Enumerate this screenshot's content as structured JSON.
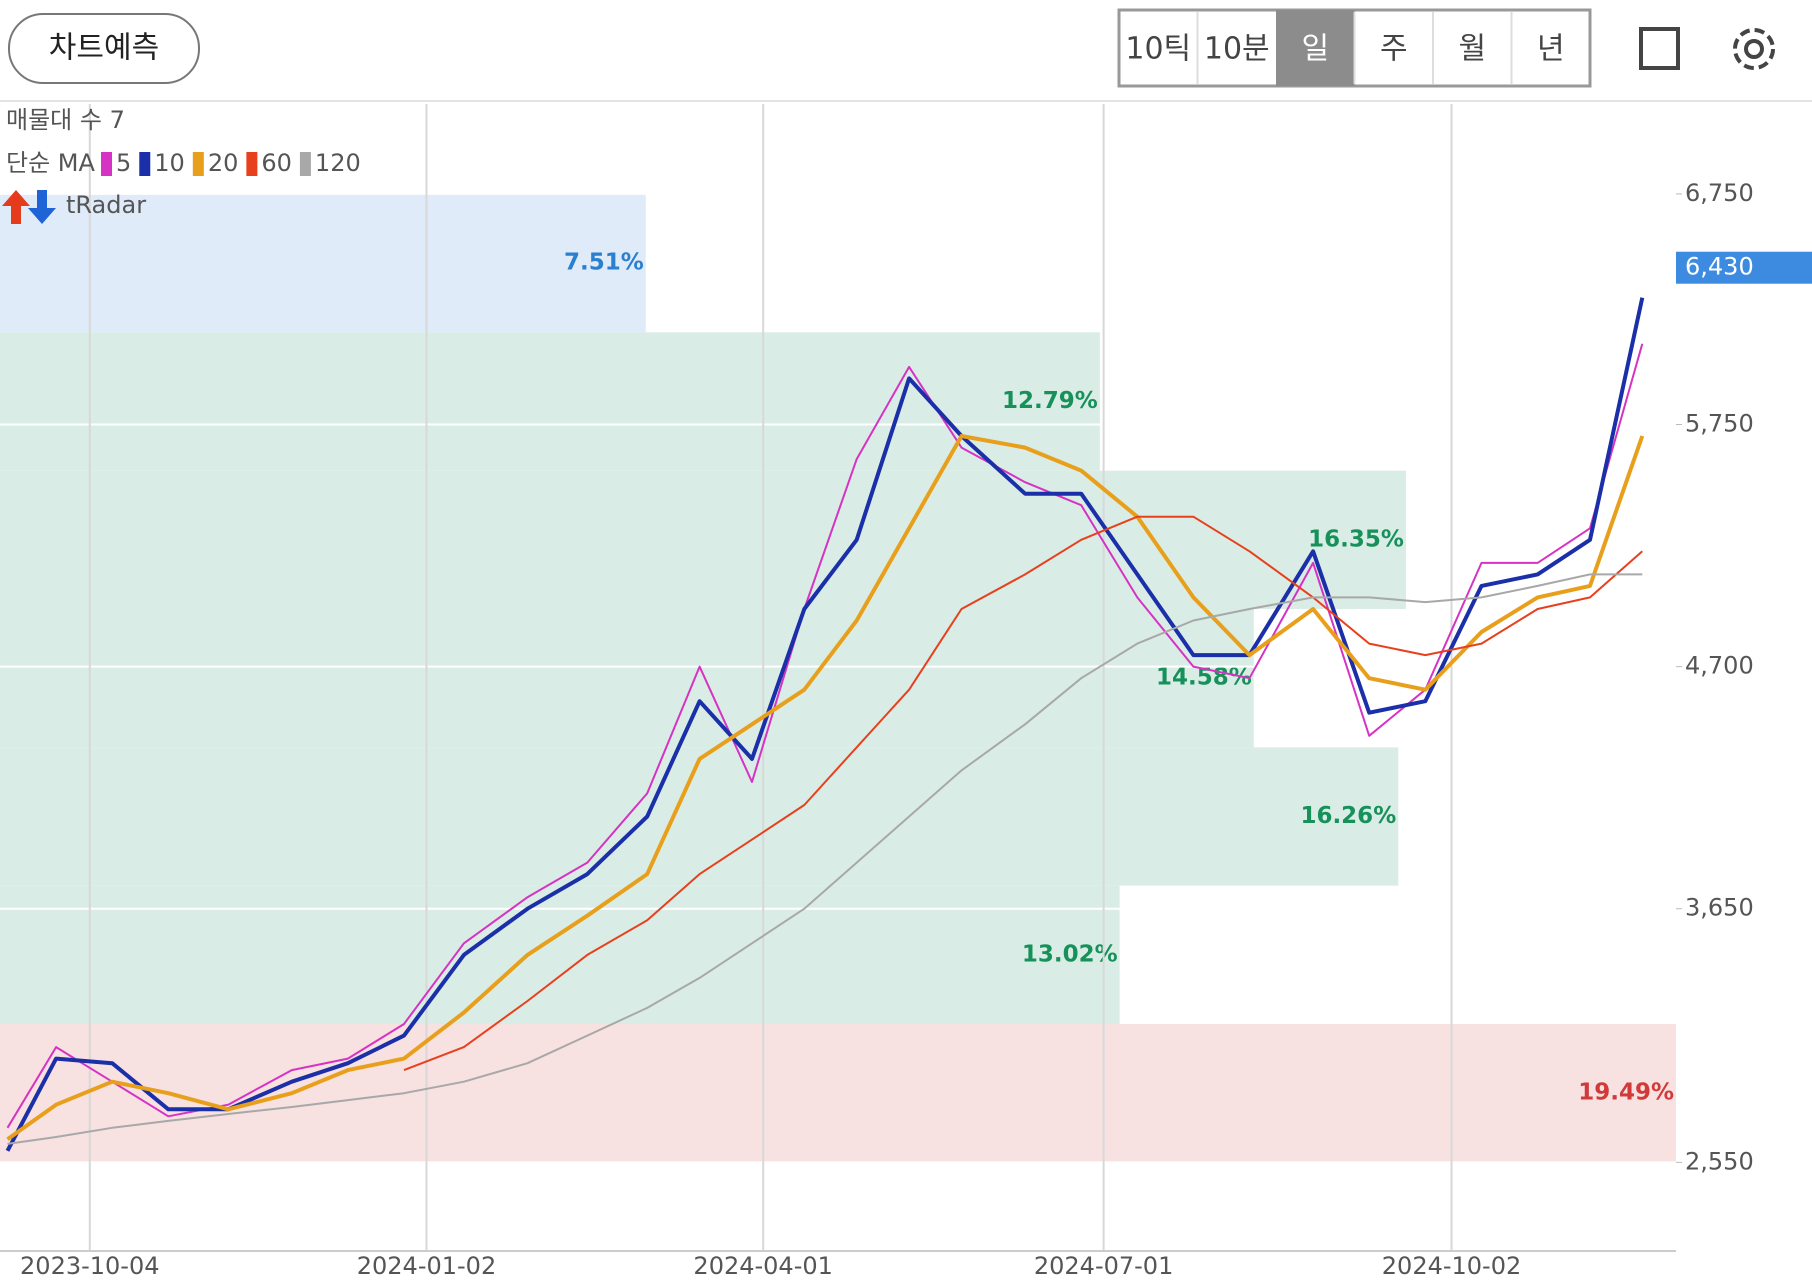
{
  "toolbar": {
    "predict_button": "차트예측",
    "periods": [
      "10틱",
      "10분",
      "일",
      "주",
      "월",
      "년"
    ],
    "selected_period": 2
  },
  "legend": {
    "volume_profile": "매물대 수 7",
    "ma_label": "단순 MA",
    "radar": "tRadar"
  },
  "chart_data": {
    "type": "line",
    "x": [
      "2023-09-12",
      "2023-09-25",
      "2023-10-10",
      "2023-10-25",
      "2023-11-10",
      "2023-11-27",
      "2023-12-12",
      "2023-12-27",
      "2024-01-12",
      "2024-01-29",
      "2024-02-14",
      "2024-03-01",
      "2024-03-15",
      "2024-03-29",
      "2024-04-12",
      "2024-04-26",
      "2024-05-10",
      "2024-05-24",
      "2024-06-10",
      "2024-06-25",
      "2024-07-10",
      "2024-07-25",
      "2024-08-09",
      "2024-08-26",
      "2024-09-10",
      "2024-09-25",
      "2024-10-10",
      "2024-10-25",
      "2024-11-08",
      "2024-11-22"
    ],
    "xlim": [
      "2023-09-10",
      "2024-12-01"
    ],
    "xticks": [
      "2023-10-04",
      "2024-01-02",
      "2024-04-01",
      "2024-07-01",
      "2024-10-02"
    ],
    "ylim": [
      2170,
      7140
    ],
    "yticks": [
      {
        "value": 2550,
        "label": "2,550"
      },
      {
        "value": 3650,
        "label": "3,650"
      },
      {
        "value": 4700,
        "label": "4,700"
      },
      {
        "value": 5750,
        "label": "5,750"
      },
      {
        "value": 6750,
        "label": "6,750"
      }
    ],
    "series": [
      {
        "name": "5",
        "color": "#d633c4",
        "width": 2,
        "values": [
          2700,
          3050,
          2900,
          2750,
          2800,
          2950,
          3000,
          3150,
          3500,
          3700,
          3850,
          4150,
          4700,
          4200,
          4950,
          5600,
          6000,
          5650,
          5500,
          5400,
          5000,
          4700,
          4650,
          5150,
          4400,
          4600,
          5150,
          5150,
          5300,
          6100
        ]
      },
      {
        "name": "10",
        "color": "#1a2fa8",
        "width": 4,
        "values": [
          2600,
          3000,
          2980,
          2780,
          2780,
          2900,
          2980,
          3100,
          3450,
          3650,
          3800,
          4050,
          4550,
          4300,
          4950,
          5250,
          5950,
          5700,
          5450,
          5450,
          5100,
          4750,
          4750,
          5200,
          4500,
          4550,
          5050,
          5100,
          5250,
          6300
        ]
      },
      {
        "name": "20",
        "color": "#e8a01c",
        "width": 4,
        "values": [
          2650,
          2800,
          2900,
          2850,
          2780,
          2850,
          2950,
          3000,
          3200,
          3450,
          3620,
          3800,
          4300,
          4450,
          4600,
          4900,
          5300,
          5700,
          5650,
          5550,
          5350,
          5000,
          4750,
          4950,
          4650,
          4600,
          4850,
          5000,
          5050,
          5700
        ]
      },
      {
        "name": "60",
        "color": "#e8401c",
        "width": 2,
        "values": [
          null,
          null,
          null,
          null,
          null,
          null,
          null,
          2950,
          3050,
          3250,
          3450,
          3600,
          3800,
          3950,
          4100,
          4350,
          4600,
          4950,
          5100,
          5250,
          5350,
          5350,
          5200,
          5000,
          4800,
          4750,
          4800,
          4950,
          5000,
          5200
        ]
      },
      {
        "name": "120",
        "color": "#a8a8a8",
        "width": 2,
        "values": [
          2630,
          2660,
          2700,
          2730,
          2760,
          2790,
          2820,
          2850,
          2900,
          2980,
          3100,
          3220,
          3350,
          3500,
          3650,
          3850,
          4050,
          4250,
          4450,
          4650,
          4800,
          4900,
          4950,
          5000,
          5000,
          4980,
          5000,
          5050,
          5100,
          5100
        ]
      }
    ],
    "zones": {
      "lows": [
        6150,
        5550,
        4950,
        4350,
        3750,
        3150,
        2550
      ],
      "highs": [
        6750,
        6150,
        5550,
        4950,
        4350,
        3750,
        3150
      ],
      "values": [
        7.51,
        12.79,
        16.35,
        14.58,
        16.26,
        13.02,
        19.49
      ],
      "value_labels": [
        "7.51%",
        "12.79%",
        "16.35%",
        "14.58%",
        "16.26%",
        "13.02%",
        "19.49%"
      ],
      "colors": [
        "#dbe9f8",
        "#d5ebe3",
        "#d5ebe3",
        "#d5ebe3",
        "#d5ebe3",
        "#d5ebe3",
        "#f6dede"
      ],
      "label_colors": [
        "#2a7fcf",
        "#17905a",
        "#17905a",
        "#17905a",
        "#17905a",
        "#17905a",
        "#d23a3a"
      ]
    },
    "last_price": {
      "value": 6430,
      "label": "6,430"
    },
    "grid": true
  }
}
